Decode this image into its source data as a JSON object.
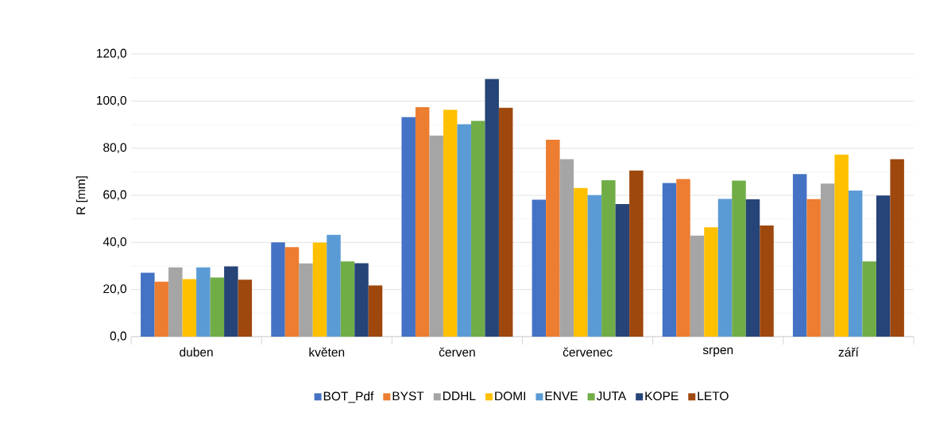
{
  "chart_data": {
    "type": "bar",
    "ylabel": "R [mm]",
    "categories": [
      "duben",
      "květen",
      "červen",
      "červenec",
      "srpen",
      "září"
    ],
    "series": [
      {
        "name": "BOT_Pdf",
        "color": "#4472c4",
        "values": [
          27.1,
          40.0,
          93.2,
          58.1,
          65.2,
          69.0
        ]
      },
      {
        "name": "BYST",
        "color": "#ed7d31",
        "values": [
          23.3,
          38.0,
          97.4,
          83.6,
          66.9,
          58.4
        ]
      },
      {
        "name": "DDHL",
        "color": "#a5a5a5",
        "values": [
          29.4,
          31.1,
          85.4,
          75.3,
          42.9,
          65.0
        ]
      },
      {
        "name": "DOMI",
        "color": "#ffc000",
        "values": [
          24.4,
          39.9,
          96.3,
          63.1,
          46.4,
          77.3
        ]
      },
      {
        "name": "ENVE",
        "color": "#5b9bd5",
        "values": [
          29.4,
          43.2,
          90.2,
          60.1,
          58.5,
          62.0
        ]
      },
      {
        "name": "JUTA",
        "color": "#70ad47",
        "values": [
          25.1,
          31.9,
          91.6,
          66.4,
          66.2,
          31.9
        ]
      },
      {
        "name": "KOPE",
        "color": "#264478",
        "values": [
          29.8,
          31.2,
          109.4,
          56.3,
          58.3,
          59.9
        ]
      },
      {
        "name": "LETO",
        "color": "#9e480e",
        "values": [
          24.2,
          21.7,
          97.2,
          70.5,
          47.2,
          75.3
        ]
      }
    ],
    "ylim": [
      0,
      120
    ],
    "yticks": [
      {
        "value": 0,
        "label": "0,0"
      },
      {
        "value": 20,
        "label": "20,0"
      },
      {
        "value": 40,
        "label": "40,0"
      },
      {
        "value": 60,
        "label": "60,0"
      },
      {
        "value": 80,
        "label": "80,0"
      },
      {
        "value": 100,
        "label": "100,0"
      },
      {
        "value": 120,
        "label": "120,0"
      }
    ],
    "grid": "y",
    "legend": "bottom"
  }
}
